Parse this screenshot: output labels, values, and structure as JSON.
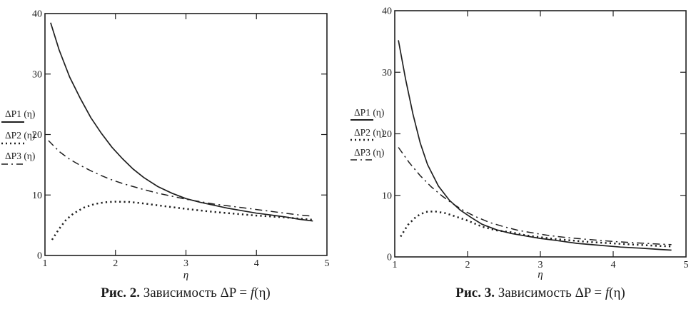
{
  "page": {
    "background": "#ffffff",
    "ink_color": "#1f1f1f"
  },
  "captions": [
    {
      "bold": "Рис. 2.",
      "pre": " Зависимость ΔP = ",
      "func": "f",
      "post": "(η)"
    },
    {
      "bold": "Рис. 3.",
      "pre": " Зависимость ΔP = ",
      "func": "f",
      "post": "(η)"
    }
  ],
  "chart_data": [
    {
      "type": "line",
      "title": "Рис. 2. Зависимость ΔP = f(η)",
      "xlabel": "η",
      "ylabel": "",
      "xlim": [
        1,
        5
      ],
      "ylim": [
        0,
        40
      ],
      "x_ticks": [
        1,
        2,
        3,
        4,
        5
      ],
      "y_ticks": [
        0,
        10,
        20,
        30,
        40
      ],
      "grid": false,
      "legend_position": "outside-left",
      "series": [
        {
          "name": "ΔP1 (η)",
          "style": "solid",
          "x": [
            1.08,
            1.2,
            1.35,
            1.5,
            1.65,
            1.8,
            1.95,
            2.1,
            2.25,
            2.4,
            2.6,
            2.8,
            3.0,
            3.2,
            3.4,
            3.6,
            3.8,
            4.0,
            4.2,
            4.4,
            4.6,
            4.8
          ],
          "y": [
            38.5,
            34.0,
            29.5,
            26.0,
            22.8,
            20.2,
            17.9,
            16.0,
            14.3,
            12.9,
            11.4,
            10.3,
            9.4,
            8.8,
            8.3,
            7.8,
            7.4,
            7.0,
            6.7,
            6.4,
            6.0,
            5.7
          ]
        },
        {
          "name": "ΔP2 (η)",
          "style": "dotted",
          "x": [
            1.1,
            1.2,
            1.3,
            1.4,
            1.55,
            1.7,
            1.85,
            2.0,
            2.2,
            2.4,
            2.6,
            2.8,
            3.0,
            3.2,
            3.4,
            3.6,
            3.8,
            4.0,
            4.2,
            4.4,
            4.6,
            4.8
          ],
          "y": [
            2.6,
            4.4,
            5.9,
            6.9,
            7.9,
            8.5,
            8.8,
            8.9,
            8.85,
            8.6,
            8.3,
            8.0,
            7.7,
            7.45,
            7.2,
            7.0,
            6.8,
            6.6,
            6.45,
            6.3,
            6.1,
            5.9
          ]
        },
        {
          "name": "ΔP3 (η)",
          "style": "dashdot",
          "x": [
            1.05,
            1.2,
            1.35,
            1.5,
            1.65,
            1.8,
            1.95,
            2.1,
            2.25,
            2.4,
            2.6,
            2.8,
            3.0,
            3.2,
            3.4,
            3.6,
            3.8,
            4.0,
            4.2,
            4.4,
            4.6,
            4.8
          ],
          "y": [
            19.0,
            17.2,
            15.9,
            14.9,
            14.0,
            13.2,
            12.5,
            11.9,
            11.4,
            10.9,
            10.3,
            9.8,
            9.3,
            8.9,
            8.5,
            8.2,
            7.9,
            7.6,
            7.3,
            7.0,
            6.7,
            6.5
          ]
        }
      ]
    },
    {
      "type": "line",
      "title": "Рис. 3. Зависимость ΔP = f(η)",
      "xlabel": "η",
      "ylabel": "",
      "xlim": [
        1,
        5
      ],
      "ylim": [
        0,
        40
      ],
      "x_ticks": [
        1,
        2,
        3,
        4,
        5
      ],
      "y_ticks": [
        0,
        10,
        20,
        30,
        40
      ],
      "grid": false,
      "legend_position": "outside-left",
      "series": [
        {
          "name": "ΔP1 (η)",
          "style": "solid",
          "x": [
            1.05,
            1.15,
            1.25,
            1.35,
            1.45,
            1.6,
            1.75,
            1.9,
            2.05,
            2.2,
            2.4,
            2.6,
            2.8,
            3.0,
            3.2,
            3.5,
            3.8,
            4.1,
            4.4,
            4.65,
            4.8
          ],
          "y": [
            35.2,
            28.8,
            23.2,
            18.5,
            15.0,
            11.5,
            9.2,
            7.6,
            6.4,
            5.3,
            4.4,
            3.8,
            3.4,
            3.0,
            2.7,
            2.2,
            1.9,
            1.6,
            1.4,
            1.2,
            1.1
          ]
        },
        {
          "name": "ΔP2 (η)",
          "style": "dotted",
          "x": [
            1.08,
            1.18,
            1.3,
            1.42,
            1.55,
            1.7,
            1.85,
            2.0,
            2.2,
            2.4,
            2.6,
            2.8,
            3.0,
            3.2,
            3.4,
            3.7,
            4.0,
            4.3,
            4.6,
            4.8
          ],
          "y": [
            3.3,
            5.2,
            6.6,
            7.3,
            7.4,
            7.1,
            6.5,
            5.9,
            4.9,
            4.3,
            4.0,
            3.5,
            3.2,
            2.9,
            2.7,
            2.4,
            2.2,
            2.0,
            1.8,
            1.7
          ]
        },
        {
          "name": "ΔP3 (η)",
          "style": "dashdot",
          "x": [
            1.05,
            1.2,
            1.35,
            1.5,
            1.65,
            1.8,
            1.95,
            2.1,
            2.3,
            2.5,
            2.7,
            2.9,
            3.1,
            3.4,
            3.7,
            4.0,
            4.3,
            4.6,
            4.8
          ],
          "y": [
            17.8,
            15.3,
            13.2,
            11.4,
            9.9,
            8.6,
            7.5,
            6.6,
            5.6,
            4.9,
            4.3,
            3.9,
            3.5,
            3.1,
            2.8,
            2.5,
            2.3,
            2.1,
            2.0
          ]
        }
      ]
    }
  ]
}
